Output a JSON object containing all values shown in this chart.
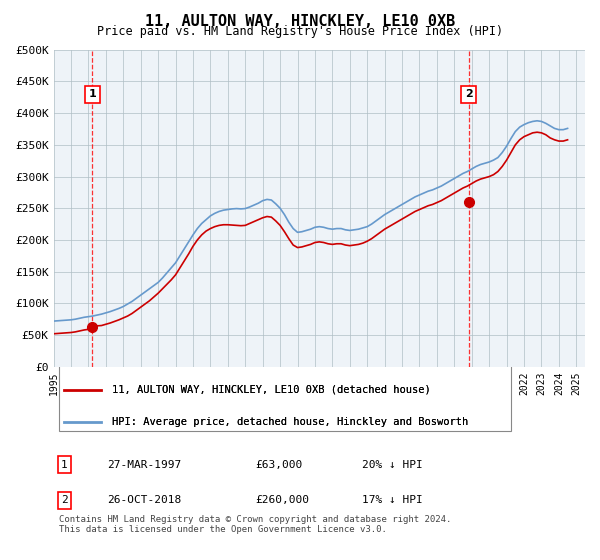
{
  "title": "11, AULTON WAY, HINCKLEY, LE10 0XB",
  "subtitle": "Price paid vs. HM Land Registry's House Price Index (HPI)",
  "ylabel": "",
  "ylim": [
    0,
    500000
  ],
  "yticks": [
    0,
    50000,
    100000,
    150000,
    200000,
    250000,
    300000,
    350000,
    400000,
    450000,
    500000
  ],
  "ytick_labels": [
    "£0",
    "£50K",
    "£100K",
    "£150K",
    "£200K",
    "£250K",
    "£300K",
    "£350K",
    "£400K",
    "£450K",
    "£500K"
  ],
  "xlim_start": 1995.0,
  "xlim_end": 2025.5,
  "xticks": [
    1995,
    1996,
    1997,
    1998,
    1999,
    2000,
    2001,
    2002,
    2003,
    2004,
    2005,
    2006,
    2007,
    2008,
    2009,
    2010,
    2011,
    2012,
    2013,
    2014,
    2015,
    2016,
    2017,
    2018,
    2019,
    2020,
    2021,
    2022,
    2023,
    2024,
    2025
  ],
  "sale1_x": 1997.23,
  "sale1_y": 63000,
  "sale1_label": "1",
  "sale1_date": "27-MAR-1997",
  "sale1_price": "£63,000",
  "sale1_hpi": "20% ↓ HPI",
  "sale2_x": 2018.82,
  "sale2_y": 260000,
  "sale2_label": "2",
  "sale2_date": "26-OCT-2018",
  "sale2_price": "£260,000",
  "sale2_hpi": "17% ↓ HPI",
  "property_color": "#cc0000",
  "hpi_color": "#6699cc",
  "background_color": "#dde8f0",
  "plot_bg_color": "#eef3f8",
  "legend_label_property": "11, AULTON WAY, HINCKLEY, LE10 0XB (detached house)",
  "legend_label_hpi": "HPI: Average price, detached house, Hinckley and Bosworth",
  "footer": "Contains HM Land Registry data © Crown copyright and database right 2024.\nThis data is licensed under the Open Government Licence v3.0.",
  "hpi_years": [
    1995.0,
    1995.25,
    1995.5,
    1995.75,
    1996.0,
    1996.25,
    1996.5,
    1996.75,
    1997.0,
    1997.25,
    1997.5,
    1997.75,
    1998.0,
    1998.25,
    1998.5,
    1998.75,
    1999.0,
    1999.25,
    1999.5,
    1999.75,
    2000.0,
    2000.25,
    2000.5,
    2000.75,
    2001.0,
    2001.25,
    2001.5,
    2001.75,
    2002.0,
    2002.25,
    2002.5,
    2002.75,
    2003.0,
    2003.25,
    2003.5,
    2003.75,
    2004.0,
    2004.25,
    2004.5,
    2004.75,
    2005.0,
    2005.25,
    2005.5,
    2005.75,
    2006.0,
    2006.25,
    2006.5,
    2006.75,
    2007.0,
    2007.25,
    2007.5,
    2007.75,
    2008.0,
    2008.25,
    2008.5,
    2008.75,
    2009.0,
    2009.25,
    2009.5,
    2009.75,
    2010.0,
    2010.25,
    2010.5,
    2010.75,
    2011.0,
    2011.25,
    2011.5,
    2011.75,
    2012.0,
    2012.25,
    2012.5,
    2012.75,
    2013.0,
    2013.25,
    2013.5,
    2013.75,
    2014.0,
    2014.25,
    2014.5,
    2014.75,
    2015.0,
    2015.25,
    2015.5,
    2015.75,
    2016.0,
    2016.25,
    2016.5,
    2016.75,
    2017.0,
    2017.25,
    2017.5,
    2017.75,
    2018.0,
    2018.25,
    2018.5,
    2018.75,
    2019.0,
    2019.25,
    2019.5,
    2019.75,
    2020.0,
    2020.25,
    2020.5,
    2020.75,
    2021.0,
    2021.25,
    2021.5,
    2021.75,
    2022.0,
    2022.25,
    2022.5,
    2022.75,
    2023.0,
    2023.25,
    2023.5,
    2023.75,
    2024.0,
    2024.25,
    2024.5
  ],
  "hpi_values": [
    72000,
    72500,
    73000,
    73500,
    74000,
    75000,
    76500,
    78000,
    79000,
    80000,
    81500,
    83000,
    85000,
    87000,
    89500,
    92000,
    95000,
    99000,
    103000,
    108000,
    113000,
    118000,
    123000,
    128000,
    133000,
    140000,
    148000,
    156000,
    164000,
    175000,
    186000,
    197000,
    208000,
    218000,
    226000,
    232000,
    238000,
    242000,
    245000,
    247000,
    248000,
    249000,
    249500,
    249000,
    249500,
    252000,
    255000,
    258000,
    262000,
    264000,
    263000,
    257000,
    250000,
    240000,
    228000,
    218000,
    212000,
    213000,
    215000,
    217000,
    220000,
    221000,
    220000,
    218000,
    217000,
    218000,
    218000,
    216000,
    215000,
    216000,
    217000,
    219000,
    221000,
    225000,
    230000,
    235000,
    240000,
    244000,
    248000,
    252000,
    256000,
    260000,
    264000,
    268000,
    271000,
    274000,
    277000,
    279000,
    282000,
    285000,
    289000,
    293000,
    297000,
    301000,
    305000,
    308000,
    312000,
    316000,
    319000,
    321000,
    323000,
    326000,
    330000,
    338000,
    348000,
    360000,
    371000,
    378000,
    382000,
    385000,
    387000,
    388000,
    387000,
    384000,
    380000,
    376000,
    374000,
    374000,
    376000
  ],
  "property_years": [
    1995.0,
    1995.25,
    1995.5,
    1995.75,
    1996.0,
    1996.25,
    1996.5,
    1996.75,
    1997.0,
    1997.25,
    1997.5,
    1997.75,
    1998.0,
    1998.25,
    1998.5,
    1998.75,
    1999.0,
    1999.25,
    1999.5,
    1999.75,
    2000.0,
    2000.25,
    2000.5,
    2000.75,
    2001.0,
    2001.25,
    2001.5,
    2001.75,
    2002.0,
    2002.25,
    2002.5,
    2002.75,
    2003.0,
    2003.25,
    2003.5,
    2003.75,
    2004.0,
    2004.25,
    2004.5,
    2004.75,
    2005.0,
    2005.25,
    2005.5,
    2005.75,
    2006.0,
    2006.25,
    2006.5,
    2006.75,
    2007.0,
    2007.25,
    2007.5,
    2007.75,
    2008.0,
    2008.25,
    2008.5,
    2008.75,
    2009.0,
    2009.25,
    2009.5,
    2009.75,
    2010.0,
    2010.25,
    2010.5,
    2010.75,
    2011.0,
    2011.25,
    2011.5,
    2011.75,
    2012.0,
    2012.25,
    2012.5,
    2012.75,
    2013.0,
    2013.25,
    2013.5,
    2013.75,
    2014.0,
    2014.25,
    2014.5,
    2014.75,
    2015.0,
    2015.25,
    2015.5,
    2015.75,
    2016.0,
    2016.25,
    2016.5,
    2016.75,
    2017.0,
    2017.25,
    2017.5,
    2017.75,
    2018.0,
    2018.25,
    2018.5,
    2018.75,
    2019.0,
    2019.25,
    2019.5,
    2019.75,
    2020.0,
    2020.25,
    2020.5,
    2020.75,
    2021.0,
    2021.25,
    2021.5,
    2021.75,
    2022.0,
    2022.25,
    2022.5,
    2022.75,
    2023.0,
    2023.25,
    2023.5,
    2023.75,
    2024.0,
    2024.25,
    2024.5
  ],
  "property_values": [
    52000,
    52500,
    53000,
    53500,
    54000,
    55000,
    56500,
    58000,
    59000,
    63000,
    64500,
    65000,
    67000,
    69000,
    71500,
    74000,
    77000,
    80000,
    84000,
    89000,
    94000,
    99000,
    104000,
    110000,
    116000,
    123000,
    130000,
    137000,
    145000,
    156000,
    167000,
    178000,
    190000,
    200000,
    208000,
    214000,
    218000,
    221000,
    223000,
    224000,
    224000,
    223500,
    223000,
    222500,
    223000,
    226000,
    229000,
    232000,
    235000,
    237000,
    236000,
    230000,
    223000,
    213000,
    202000,
    192000,
    188000,
    189000,
    191000,
    193000,
    196000,
    197000,
    196000,
    194000,
    193000,
    194000,
    194000,
    192000,
    191000,
    192000,
    193000,
    195000,
    198000,
    202000,
    207000,
    212000,
    217000,
    221000,
    225000,
    229000,
    233000,
    237000,
    241000,
    245000,
    248000,
    251000,
    254000,
    256000,
    259000,
    262000,
    266000,
    270000,
    274000,
    278000,
    282000,
    285000,
    289000,
    293000,
    296000,
    298000,
    300000,
    303000,
    308000,
    316000,
    326000,
    338000,
    350000,
    358000,
    363000,
    366000,
    369000,
    370000,
    369000,
    366000,
    361000,
    358000,
    356000,
    356000,
    358000
  ]
}
